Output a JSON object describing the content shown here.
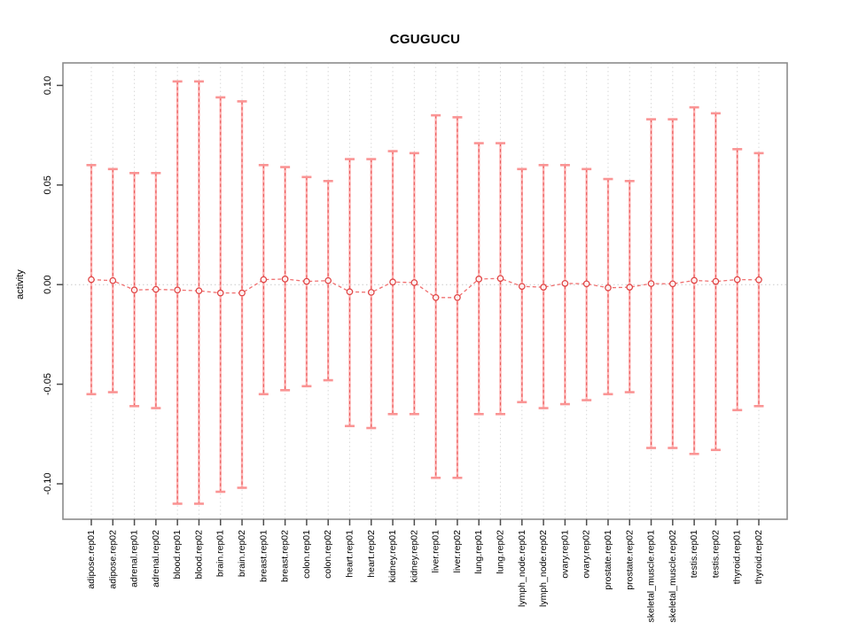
{
  "figure": {
    "background": "#ffffff"
  },
  "chart_data": {
    "type": "scatter",
    "subtype": "errorbar-means-plot",
    "title": "CGUGUCU",
    "xlabel": "",
    "ylabel": "activity",
    "ylim": [
      -0.1178,
      0.1113
    ],
    "yticks": [
      {
        "value": 0.1,
        "label": "0.10"
      },
      {
        "value": 0.05,
        "label": "0.05"
      },
      {
        "value": 0.0,
        "label": "0.00"
      },
      {
        "value": -0.05,
        "label": "-0.05"
      },
      {
        "value": -0.1,
        "label": "-0.10"
      }
    ],
    "grid": {
      "vertical": "dotted at every category",
      "horizontal": "dotted line at zero only"
    },
    "legend_position": "none",
    "marker": "open-circle",
    "categories": [
      "adipose.rep01",
      "adipose.rep02",
      "adrenal.rep01",
      "adrenal.rep02",
      "blood.rep01",
      "blood.rep02",
      "brain.rep01",
      "brain.rep02",
      "breast.rep01",
      "breast.rep02",
      "colon.rep01",
      "colon.rep02",
      "heart.rep01",
      "heart.rep02",
      "kidney.rep01",
      "kidney.rep02",
      "liver.rep01",
      "liver.rep02",
      "lung.rep01",
      "lung.rep02",
      "lymph_node.rep01",
      "lymph_node.rep02",
      "ovary.rep01",
      "ovary.rep02",
      "prostate.rep01",
      "prostate.rep02",
      "skeletal_muscle.rep01",
      "skeletal_muscle.rep02",
      "testis.rep01",
      "testis.rep02",
      "thyroid.rep01",
      "thyroid.rep02"
    ],
    "series": [
      {
        "name": "mean",
        "values": [
          0.0025,
          0.002,
          -0.0027,
          -0.0024,
          -0.0027,
          -0.0031,
          -0.0042,
          -0.0042,
          0.0025,
          0.0028,
          0.0016,
          0.002,
          -0.0036,
          -0.0039,
          0.0013,
          0.001,
          -0.0065,
          -0.0065,
          0.0028,
          0.0031,
          -0.0009,
          -0.0013,
          0.0006,
          0.0004,
          -0.0016,
          -0.0013,
          0.0005,
          0.0004,
          0.0021,
          0.0016,
          0.0025,
          0.0024
        ]
      },
      {
        "name": "upper",
        "values": [
          0.06,
          0.058,
          0.056,
          0.056,
          0.102,
          0.102,
          0.094,
          0.092,
          0.06,
          0.059,
          0.054,
          0.052,
          0.063,
          0.063,
          0.067,
          0.066,
          0.085,
          0.084,
          0.071,
          0.071,
          0.058,
          0.06,
          0.06,
          0.058,
          0.053,
          0.052,
          0.083,
          0.083,
          0.089,
          0.086,
          0.068,
          0.066
        ]
      },
      {
        "name": "lower",
        "values": [
          -0.055,
          -0.054,
          -0.061,
          -0.062,
          -0.11,
          -0.11,
          -0.104,
          -0.102,
          -0.055,
          -0.053,
          -0.051,
          -0.048,
          -0.071,
          -0.072,
          -0.065,
          -0.065,
          -0.097,
          -0.097,
          -0.065,
          -0.065,
          -0.059,
          -0.062,
          -0.06,
          -0.058,
          -0.055,
          -0.054,
          -0.082,
          -0.082,
          -0.085,
          -0.083,
          -0.063,
          -0.061
        ]
      }
    ],
    "colors": {
      "bar_light": "#ffb3b3",
      "bar_dash": "#e85c5c",
      "cap": "#fa9494",
      "point": "#e04646",
      "line": "#f07070",
      "grid": "#d9d9d9",
      "zero_line": "#c9c9c9",
      "box": "#8c8c8c",
      "tick": "#4d4d4d",
      "text": "#000000"
    }
  }
}
